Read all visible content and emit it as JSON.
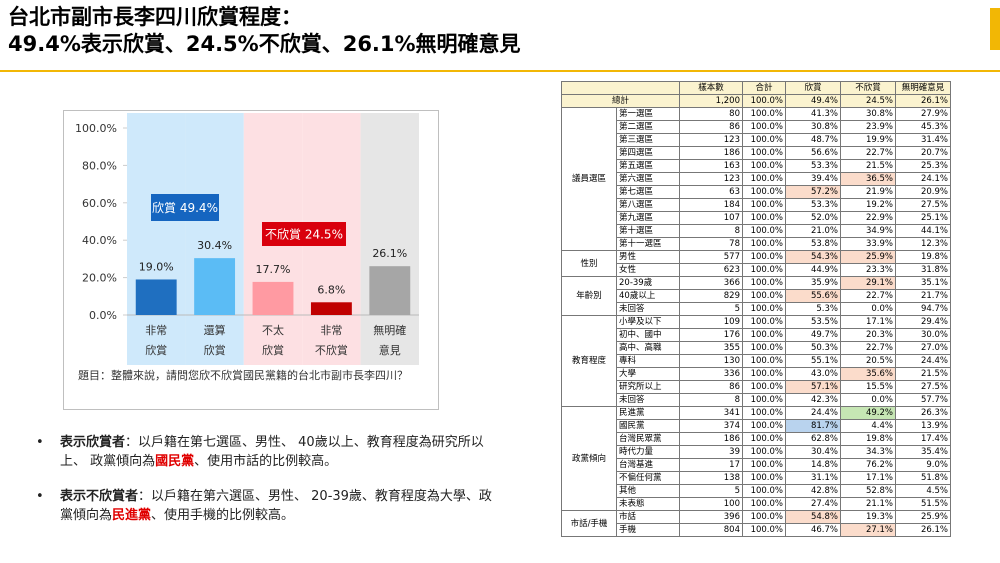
{
  "header": {
    "title_lines": [
      "台北市副市長李四川欣賞程度：",
      "49.4%表示欣賞、24.5%不欣賞、26.1%無明確意見"
    ]
  },
  "chart_data": {
    "type": "bar",
    "categories": [
      "非常\n欣賞",
      "還算\n欣賞",
      "不太\n欣賞",
      "非常\n不欣賞",
      "無明確\n意見"
    ],
    "values": [
      19.0,
      30.4,
      17.7,
      6.8,
      26.1
    ],
    "value_labels": [
      "19.0%",
      "30.4%",
      "17.7%",
      "6.8%",
      "26.1%"
    ],
    "colors": [
      "#1f6fc0",
      "#5bbcf5",
      "#ff9aa2",
      "#c00000",
      "#a6a6a6"
    ],
    "band_colors": [
      "#cfe9fb",
      "#cfe9fb",
      "#fde0e3",
      "#fde0e3",
      "#e6e6e6"
    ],
    "ylim": [
      0,
      100
    ],
    "yticks": [
      {
        "value": 0,
        "label": "0.0%"
      },
      {
        "value": 20,
        "label": "20.0%"
      },
      {
        "value": 40,
        "label": "40.0%"
      },
      {
        "value": 60,
        "label": "60.0%"
      },
      {
        "value": 80,
        "label": "80.0%"
      },
      {
        "value": 100,
        "label": "100.0%"
      }
    ],
    "annotations": [
      {
        "text": "欣賞 49.4%",
        "color": "#1565c0"
      },
      {
        "text": "不欣賞 24.5%",
        "color": "#d9000d"
      }
    ],
    "note": "題目：整體來說，請問您欣不欣賞國民黨籍的台北市副市長李四川？"
  },
  "bullets": [
    {
      "label": "表示欣賞者",
      "before": "：以戶籍在第七選區、男性、 40歲以上、教育程度為研究所以上、 政黨傾向為",
      "highlight": "國民黨",
      "after": "、使用市話的比例較高。"
    },
    {
      "label": "表示不欣賞者",
      "before": "：以戶籍在第六選區、男性、 20-39歲、教育程度為大學、政黨傾向為",
      "highlight": "民進黨",
      "after": "、使用手機的比例較高。"
    }
  ],
  "table": {
    "columns": [
      "樣本數",
      "合計",
      "欣賞",
      "不欣賞",
      "無明確意見"
    ],
    "total": [
      "總計",
      "1,200",
      "100.0%",
      "49.4%",
      "24.5%",
      "26.1%"
    ],
    "groups": [
      {
        "name": "議員選區",
        "rows": [
          {
            "cells": [
              "第一選區",
              "80",
              "100.0%",
              "41.3%",
              "30.8%",
              "27.9%"
            ]
          },
          {
            "cells": [
              "第二選區",
              "86",
              "100.0%",
              "30.8%",
              "23.9%",
              "45.3%"
            ]
          },
          {
            "cells": [
              "第三選區",
              "123",
              "100.0%",
              "48.7%",
              "19.9%",
              "31.4%"
            ]
          },
          {
            "cells": [
              "第四選區",
              "186",
              "100.0%",
              "56.6%",
              "22.7%",
              "20.7%"
            ]
          },
          {
            "cells": [
              "第五選區",
              "163",
              "100.0%",
              "53.3%",
              "21.5%",
              "25.3%"
            ]
          },
          {
            "cells": [
              "第六選區",
              "123",
              "100.0%",
              "39.4%",
              "36.5%",
              "24.1%"
            ],
            "highlight": [
              {
                "col": 4,
                "color": "#fbdccb"
              }
            ]
          },
          {
            "cells": [
              "第七選區",
              "63",
              "100.0%",
              "57.2%",
              "21.9%",
              "20.9%"
            ],
            "highlight": [
              {
                "col": 3,
                "color": "#fbdccb"
              }
            ]
          },
          {
            "cells": [
              "第八選區",
              "184",
              "100.0%",
              "53.3%",
              "19.2%",
              "27.5%"
            ]
          },
          {
            "cells": [
              "第九選區",
              "107",
              "100.0%",
              "52.0%",
              "22.9%",
              "25.1%"
            ]
          },
          {
            "cells": [
              "第十選區",
              "8",
              "100.0%",
              "21.0%",
              "34.9%",
              "44.1%"
            ]
          },
          {
            "cells": [
              "第十一選區",
              "78",
              "100.0%",
              "53.8%",
              "33.9%",
              "12.3%"
            ]
          }
        ]
      },
      {
        "name": "性別",
        "rows": [
          {
            "cells": [
              "男性",
              "577",
              "100.0%",
              "54.3%",
              "25.9%",
              "19.8%"
            ],
            "highlight": [
              {
                "col": 3,
                "color": "#fbdccb"
              },
              {
                "col": 4,
                "color": "#fbdccb"
              }
            ]
          },
          {
            "cells": [
              "女性",
              "623",
              "100.0%",
              "44.9%",
              "23.3%",
              "31.8%"
            ]
          }
        ]
      },
      {
        "name": "年齡別",
        "rows": [
          {
            "cells": [
              "20-39歲",
              "366",
              "100.0%",
              "35.9%",
              "29.1%",
              "35.1%"
            ],
            "highlight": [
              {
                "col": 4,
                "color": "#fbdccb"
              }
            ]
          },
          {
            "cells": [
              "40歲以上",
              "829",
              "100.0%",
              "55.6%",
              "22.7%",
              "21.7%"
            ],
            "highlight": [
              {
                "col": 3,
                "color": "#fbdccb"
              }
            ]
          },
          {
            "cells": [
              "未回答",
              "5",
              "100.0%",
              "5.3%",
              "0.0%",
              "94.7%"
            ]
          }
        ]
      },
      {
        "name": "教育程度",
        "rows": [
          {
            "cells": [
              "小學及以下",
              "109",
              "100.0%",
              "53.5%",
              "17.1%",
              "29.4%"
            ]
          },
          {
            "cells": [
              "初中、國中",
              "176",
              "100.0%",
              "49.7%",
              "20.3%",
              "30.0%"
            ]
          },
          {
            "cells": [
              "高中、高職",
              "355",
              "100.0%",
              "50.3%",
              "22.7%",
              "27.0%"
            ]
          },
          {
            "cells": [
              "專科",
              "130",
              "100.0%",
              "55.1%",
              "20.5%",
              "24.4%"
            ]
          },
          {
            "cells": [
              "大學",
              "336",
              "100.0%",
              "43.0%",
              "35.6%",
              "21.5%"
            ],
            "highlight": [
              {
                "col": 4,
                "color": "#fbdccb"
              }
            ]
          },
          {
            "cells": [
              "研究所以上",
              "86",
              "100.0%",
              "57.1%",
              "15.5%",
              "27.5%"
            ],
            "highlight": [
              {
                "col": 3,
                "color": "#fbdccb"
              }
            ]
          },
          {
            "cells": [
              "未回答",
              "8",
              "100.0%",
              "42.3%",
              "0.0%",
              "57.7%"
            ]
          }
        ]
      },
      {
        "name": "政黨傾向",
        "rows": [
          {
            "cells": [
              "民進黨",
              "341",
              "100.0%",
              "24.4%",
              "49.2%",
              "26.3%"
            ],
            "highlight": [
              {
                "col": 4,
                "color": "#c6e6b4"
              }
            ]
          },
          {
            "cells": [
              "國民黨",
              "374",
              "100.0%",
              "81.7%",
              "4.4%",
              "13.9%"
            ],
            "highlight": [
              {
                "col": 3,
                "color": "#b9d3ee"
              }
            ]
          },
          {
            "cells": [
              "台灣民眾黨",
              "186",
              "100.0%",
              "62.8%",
              "19.8%",
              "17.4%"
            ]
          },
          {
            "cells": [
              "時代力量",
              "39",
              "100.0%",
              "30.4%",
              "34.3%",
              "35.4%"
            ]
          },
          {
            "cells": [
              "台灣基進",
              "17",
              "100.0%",
              "14.8%",
              "76.2%",
              "9.0%"
            ]
          },
          {
            "cells": [
              "不偏任何黨",
              "138",
              "100.0%",
              "31.1%",
              "17.1%",
              "51.8%"
            ]
          },
          {
            "cells": [
              "其他",
              "5",
              "100.0%",
              "42.8%",
              "52.8%",
              "4.5%"
            ]
          },
          {
            "cells": [
              "未表態",
              "100",
              "100.0%",
              "27.4%",
              "21.1%",
              "51.5%"
            ]
          }
        ]
      },
      {
        "name": "市話/手機",
        "rows": [
          {
            "cells": [
              "市話",
              "396",
              "100.0%",
              "54.8%",
              "19.3%",
              "25.9%"
            ],
            "highlight": [
              {
                "col": 3,
                "color": "#fbdccb"
              }
            ]
          },
          {
            "cells": [
              "手機",
              "804",
              "100.0%",
              "46.7%",
              "27.1%",
              "26.1%"
            ],
            "highlight": [
              {
                "col": 4,
                "color": "#fbdccb"
              }
            ]
          }
        ]
      }
    ]
  }
}
